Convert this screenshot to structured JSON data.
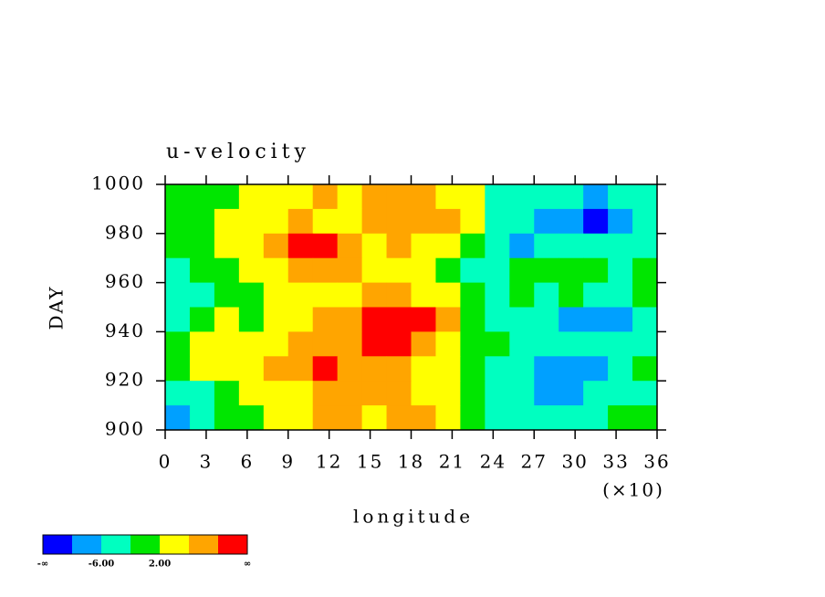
{
  "chart_data": {
    "type": "heatmap",
    "title": "u-velocity",
    "x_label": "longitude",
    "y_label": "DAY",
    "x_scale_label": "(×10)",
    "x": [
      9,
      27,
      45,
      63,
      81,
      99,
      117,
      135,
      153,
      171,
      189,
      207,
      225,
      243,
      261,
      279,
      297,
      315,
      333,
      351
    ],
    "y": [
      995,
      985,
      975,
      965,
      955,
      945,
      935,
      925,
      915,
      905
    ],
    "z": [
      [
        0,
        -2,
        1,
        3,
        4,
        5,
        6,
        5,
        7,
        8,
        6,
        5,
        2,
        -3,
        -5,
        -4,
        -6,
        -7,
        -5,
        -3
      ],
      [
        -1,
        0,
        2,
        4,
        5,
        7,
        5,
        4,
        6,
        7,
        8,
        9,
        3,
        -4,
        -6,
        -7,
        -9,
        -11,
        -8,
        -5
      ],
      [
        -2,
        1,
        3,
        5,
        7,
        11,
        12,
        7,
        5,
        6,
        4,
        3,
        -2,
        -5,
        -7,
        -6,
        -5,
        -4,
        -6,
        -4
      ],
      [
        -4,
        -2,
        0,
        3,
        5,
        8,
        9,
        6,
        4,
        5,
        3,
        1,
        -3,
        -4,
        -2,
        -1,
        0,
        -2,
        -3,
        -1
      ],
      [
        -5,
        -3,
        -1,
        1,
        3,
        4,
        5,
        4,
        6,
        7,
        5,
        3,
        1,
        -3,
        -2,
        -4,
        -1,
        -3,
        -5,
        -2
      ],
      [
        -3,
        -1,
        2,
        0,
        3,
        5,
        6,
        8,
        11,
        12,
        10,
        6,
        1,
        -3,
        -5,
        -6,
        -9,
        -10,
        -7,
        -4
      ],
      [
        -1,
        2,
        4,
        3,
        5,
        7,
        8,
        9,
        12,
        10,
        7,
        4,
        0,
        -2,
        -4,
        -3,
        -5,
        -6,
        -4,
        -3
      ],
      [
        1,
        3,
        2,
        4,
        6,
        9,
        11,
        8,
        7,
        9,
        5,
        3,
        -1,
        -3,
        -5,
        -8,
        -10,
        -7,
        -5,
        -2
      ],
      [
        -6,
        -4,
        -1,
        2,
        4,
        5,
        7,
        6,
        8,
        6,
        4,
        2,
        -2,
        -4,
        -6,
        -9,
        -8,
        -6,
        -4,
        -3
      ],
      [
        -7,
        -5,
        -2,
        0,
        3,
        4,
        6,
        7,
        5,
        8,
        6,
        4,
        0,
        -3,
        -4,
        -5,
        -6,
        -4,
        -2,
        -1
      ]
    ],
    "levels": [
      -10,
      -6,
      -2,
      2,
      6,
      10
    ],
    "colors": [
      "#0000ff",
      "#00a0ff",
      "#00ffc0",
      "#00e600",
      "#ffff00",
      "#ffa500",
      "#ff0000"
    ],
    "colorbar_labels": [
      "-∞",
      "-6.00",
      "2.00",
      "∞"
    ],
    "xlim": [
      0,
      360
    ],
    "ylim": [
      900,
      1000
    ],
    "xticks": [
      0,
      {
        "value": 30,
        "label": "3"
      },
      {
        "value": 60,
        "label": "6"
      },
      {
        "value": 90,
        "label": "9"
      },
      {
        "value": 120,
        "label": "12"
      },
      {
        "value": 150,
        "label": "15"
      },
      {
        "value": 180,
        "label": "18"
      },
      {
        "value": 210,
        "label": "21"
      },
      {
        "value": 240,
        "label": "24"
      },
      {
        "value": 270,
        "label": "27"
      },
      {
        "value": 300,
        "label": "30"
      },
      {
        "value": 330,
        "label": "33"
      },
      {
        "value": 360,
        "label": "36"
      }
    ],
    "yticks": [
      900,
      920,
      940,
      960,
      980,
      1000
    ]
  }
}
